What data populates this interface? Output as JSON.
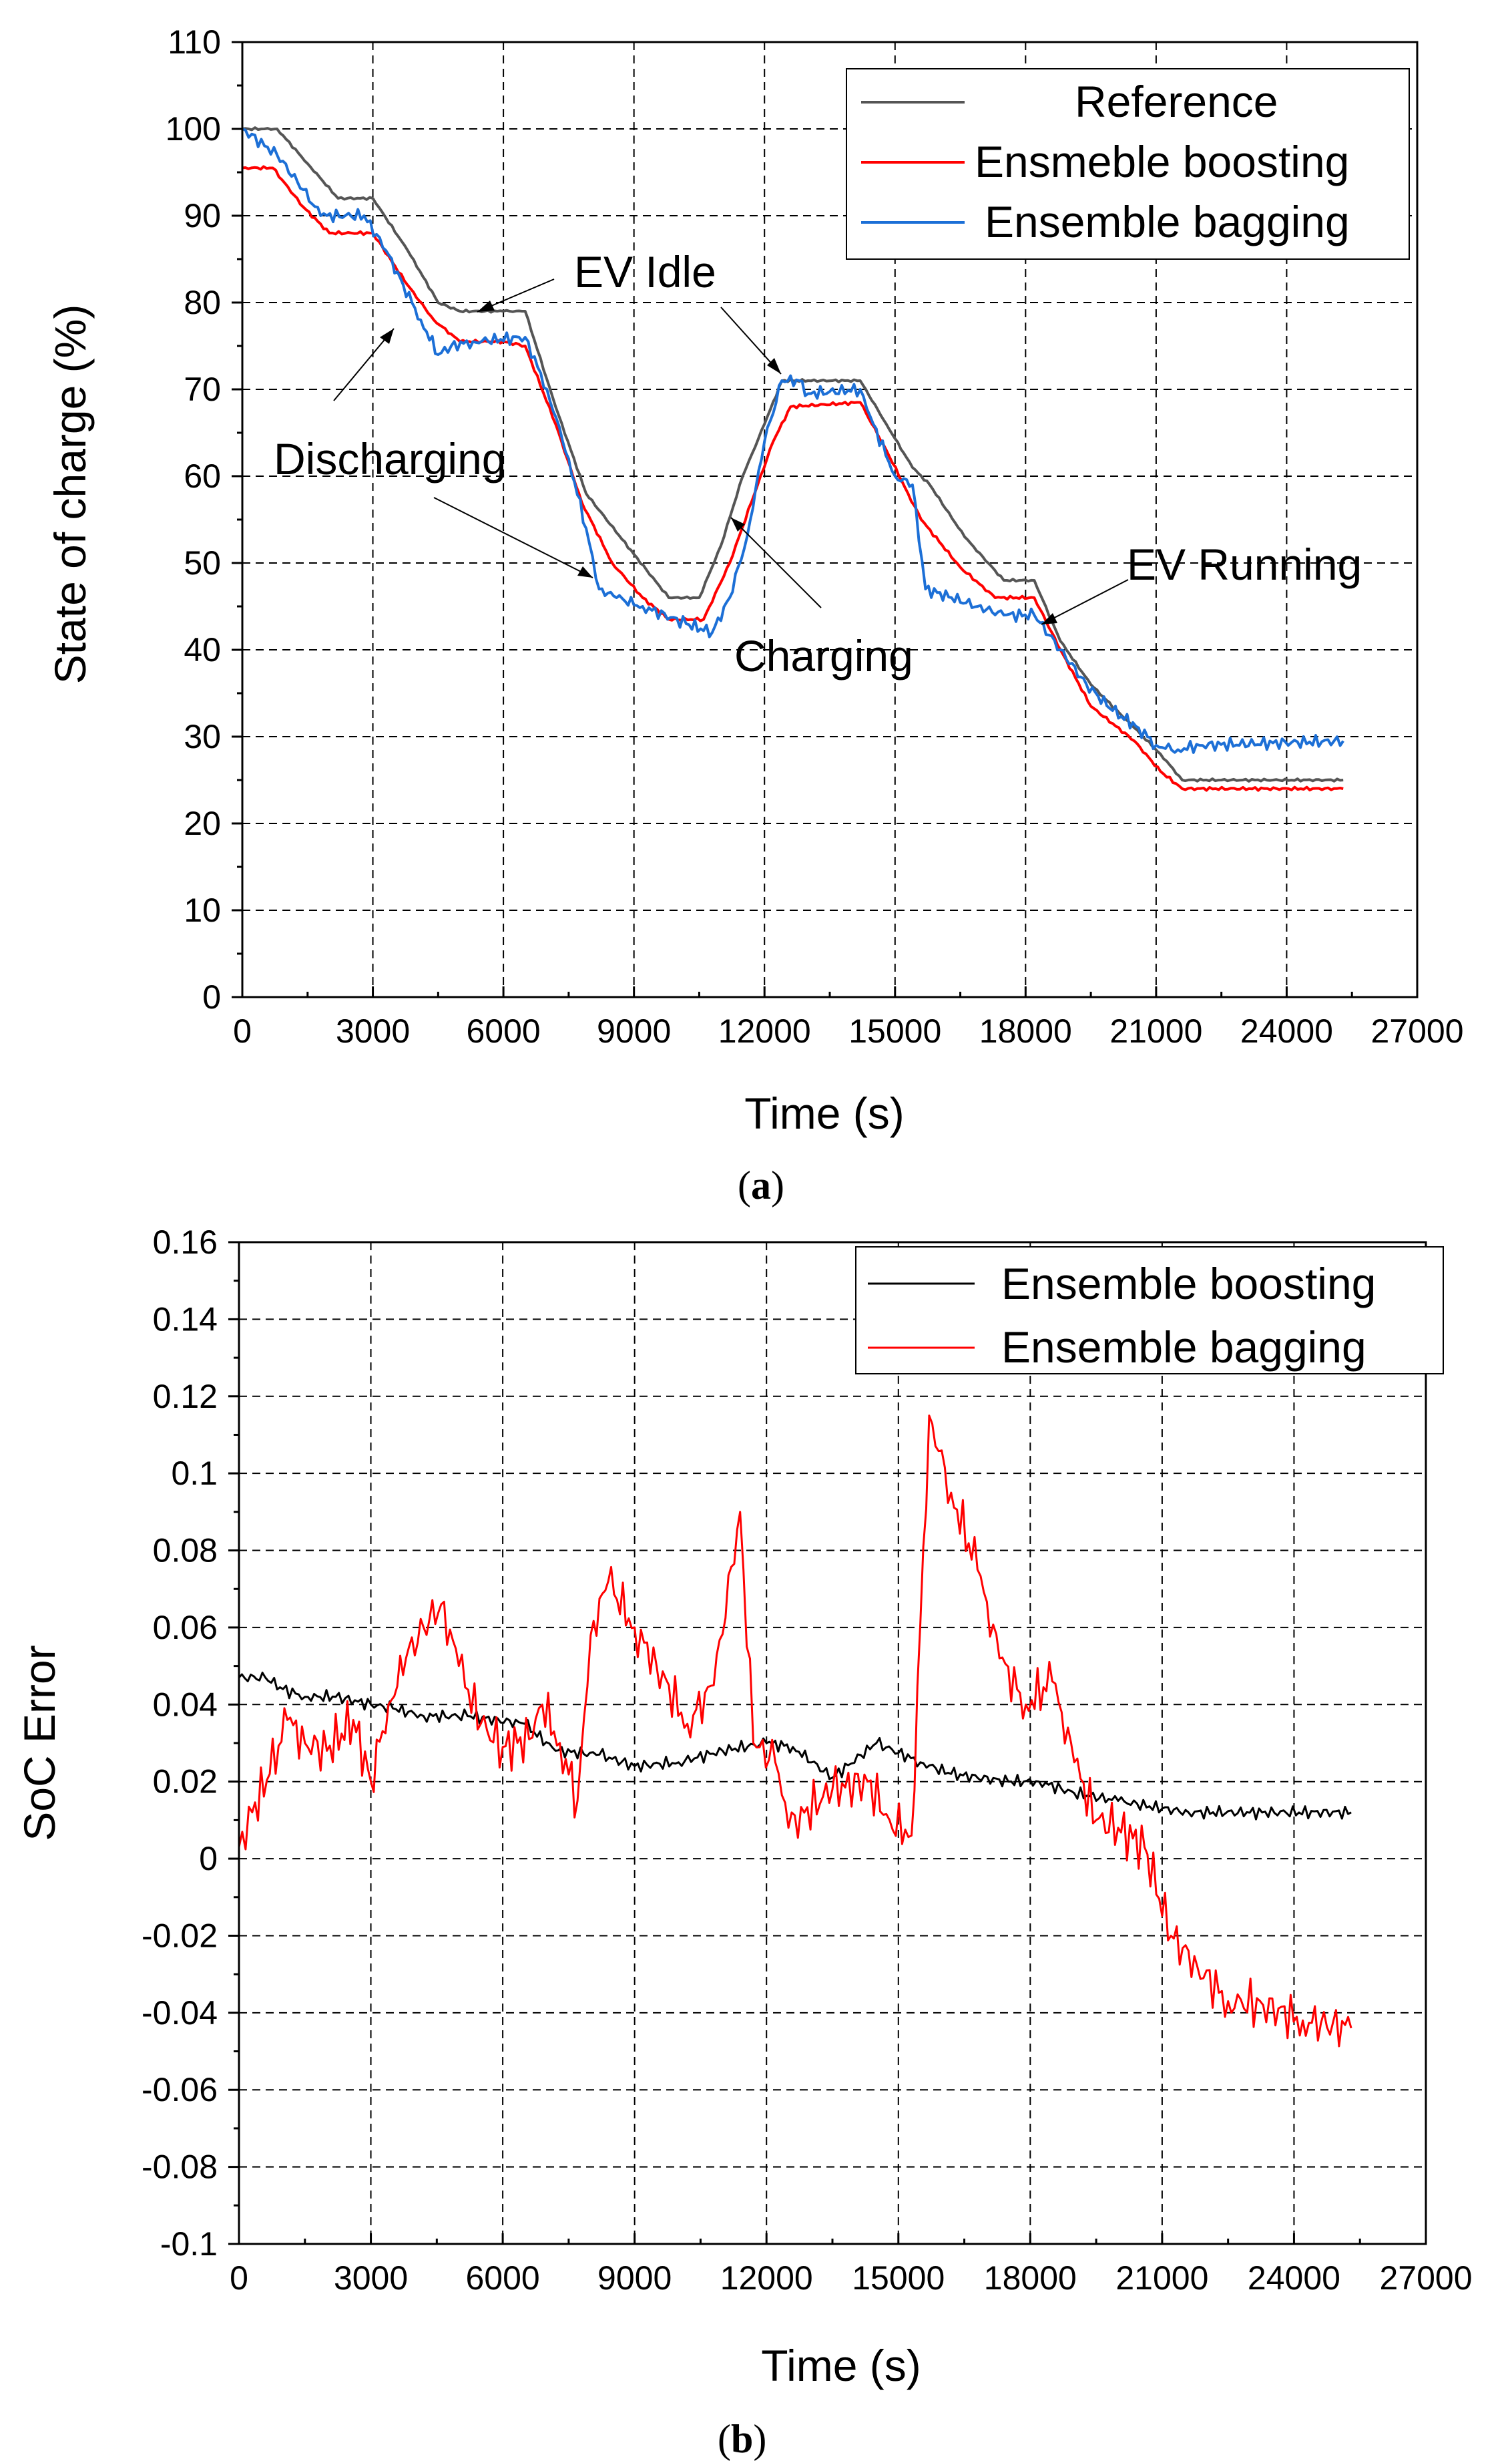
{
  "chart_data": [
    {
      "type": "line",
      "panel_label": "a",
      "xlabel": "Time (s)",
      "ylabel": "State of charge (%)",
      "xlim": [
        0,
        27000
      ],
      "ylim": [
        0,
        110
      ],
      "xticks": [
        0,
        3000,
        6000,
        9000,
        12000,
        15000,
        18000,
        21000,
        24000,
        27000
      ],
      "yticks": [
        0,
        10,
        20,
        30,
        40,
        50,
        60,
        70,
        80,
        90,
        100,
        110
      ],
      "grid": true,
      "legend_position": "top-right",
      "series": [
        {
          "name": "Reference",
          "color": "#555555",
          "points": [
            [
              0,
              100
            ],
            [
              800,
              100
            ],
            [
              1500,
              96
            ],
            [
              2200,
              92
            ],
            [
              3000,
              92
            ],
            [
              3800,
              86
            ],
            [
              4500,
              80
            ],
            [
              5000,
              79
            ],
            [
              6000,
              79
            ],
            [
              6500,
              79
            ],
            [
              7200,
              68
            ],
            [
              7900,
              58
            ],
            [
              9000,
              51
            ],
            [
              9800,
              46
            ],
            [
              10500,
              46
            ],
            [
              11000,
              52
            ],
            [
              11500,
              60
            ],
            [
              12000,
              66
            ],
            [
              12400,
              71
            ],
            [
              13000,
              71
            ],
            [
              14200,
              71
            ],
            [
              14800,
              66
            ],
            [
              15400,
              61
            ],
            [
              15800,
              59
            ],
            [
              16600,
              53
            ],
            [
              17500,
              48
            ],
            [
              18200,
              48
            ],
            [
              18800,
              41
            ],
            [
              19500,
              36
            ],
            [
              20500,
              31
            ],
            [
              21100,
              28
            ],
            [
              21600,
              25
            ],
            [
              22500,
              25
            ],
            [
              25300,
              25
            ]
          ]
        },
        {
          "name": "Ensmeble boosting",
          "color": "#ff0000",
          "points": [
            [
              0,
              95.5
            ],
            [
              700,
              95.5
            ],
            [
              1400,
              91
            ],
            [
              2000,
              88
            ],
            [
              3000,
              88
            ],
            [
              3800,
              82
            ],
            [
              4400,
              78
            ],
            [
              5000,
              75.5
            ],
            [
              6000,
              75.5
            ],
            [
              6500,
              75
            ],
            [
              7200,
              66
            ],
            [
              7800,
              57
            ],
            [
              8500,
              50
            ],
            [
              9200,
              46
            ],
            [
              9800,
              43.5
            ],
            [
              10600,
              43.5
            ],
            [
              11200,
              50
            ],
            [
              11700,
              57
            ],
            [
              12200,
              64
            ],
            [
              12600,
              68
            ],
            [
              14200,
              68.5
            ],
            [
              14800,
              63
            ],
            [
              15300,
              58
            ],
            [
              15600,
              55
            ],
            [
              16500,
              49.5
            ],
            [
              17300,
              46
            ],
            [
              18200,
              46
            ],
            [
              18800,
              40
            ],
            [
              19500,
              33.5
            ],
            [
              20500,
              29.5
            ],
            [
              21100,
              26
            ],
            [
              21600,
              24
            ],
            [
              25300,
              24
            ]
          ]
        },
        {
          "name": "Ensemble bagging",
          "color": "#1c6fd6",
          "points": [
            [
              0,
              100
            ],
            [
              800,
              97
            ],
            [
              1400,
              93
            ],
            [
              1800,
              90
            ],
            [
              2800,
              90
            ],
            [
              3300,
              86
            ],
            [
              3700,
              82
            ],
            [
              4100,
              78
            ],
            [
              4500,
              74
            ],
            [
              4800,
              75
            ],
            [
              5300,
              75.5
            ],
            [
              6500,
              76
            ],
            [
              7000,
              70
            ],
            [
              7500,
              62
            ],
            [
              7900,
              54
            ],
            [
              8200,
              47
            ],
            [
              8600,
              46
            ],
            [
              9200,
              45
            ],
            [
              10200,
              43
            ],
            [
              10800,
              42
            ],
            [
              11200,
              46
            ],
            [
              11600,
              53
            ],
            [
              12000,
              64
            ],
            [
              12400,
              71
            ],
            [
              12800,
              71
            ],
            [
              13000,
              69.5
            ],
            [
              14200,
              70
            ],
            [
              14500,
              66
            ],
            [
              15000,
              60
            ],
            [
              15400,
              59
            ],
            [
              15700,
              47
            ],
            [
              16300,
              46
            ],
            [
              16900,
              45
            ],
            [
              17500,
              44
            ],
            [
              18200,
              44
            ],
            [
              18800,
              40
            ],
            [
              19400,
              36
            ],
            [
              20000,
              33
            ],
            [
              20600,
              31
            ],
            [
              21000,
              29
            ],
            [
              21500,
              28.5
            ],
            [
              22000,
              29
            ],
            [
              25300,
              29.5
            ]
          ]
        }
      ],
      "annotations": [
        {
          "text": "EV Idle"
        },
        {
          "text": "Discharging"
        },
        {
          "text": "Charging"
        },
        {
          "text": "EV Running"
        }
      ]
    },
    {
      "type": "line",
      "panel_label": "b",
      "xlabel": "Time (s)",
      "ylabel": "SoC Error",
      "xlim": [
        0,
        27000
      ],
      "ylim": [
        -0.1,
        0.16
      ],
      "xticks": [
        0,
        3000,
        6000,
        9000,
        12000,
        15000,
        18000,
        21000,
        24000,
        27000
      ],
      "yticks": [
        -0.1,
        -0.08,
        -0.06,
        -0.04,
        -0.02,
        0,
        0.02,
        0.04,
        0.06,
        0.08,
        0.1,
        0.12,
        0.14,
        0.16
      ],
      "ytick_labels": [
        "-0.1",
        "-0.08",
        "-0.06",
        "-0.04",
        "-0.02",
        "0",
        "0.02",
        "0.04",
        "0.06",
        "0.08",
        "0.1",
        "0.12",
        "0.14",
        "0.16"
      ],
      "grid": true,
      "legend_position": "top-right",
      "series": [
        {
          "name": "Ensemble boosting",
          "color": "#000000",
          "points": [
            [
              0,
              0.047
            ],
            [
              600,
              0.047
            ],
            [
              1000,
              0.044
            ],
            [
              1500,
              0.042
            ],
            [
              2200,
              0.042
            ],
            [
              3000,
              0.04
            ],
            [
              3500,
              0.039
            ],
            [
              4200,
              0.037
            ],
            [
              5200,
              0.037
            ],
            [
              6500,
              0.035
            ],
            [
              7200,
              0.028
            ],
            [
              8200,
              0.027
            ],
            [
              9000,
              0.024
            ],
            [
              10000,
              0.025
            ],
            [
              11000,
              0.028
            ],
            [
              12000,
              0.03
            ],
            [
              12600,
              0.029
            ],
            [
              13500,
              0.021
            ],
            [
              14500,
              0.03
            ],
            [
              15500,
              0.025
            ],
            [
              16200,
              0.022
            ],
            [
              17500,
              0.02
            ],
            [
              18200,
              0.02
            ],
            [
              19000,
              0.017
            ],
            [
              20000,
              0.015
            ],
            [
              21000,
              0.013
            ],
            [
              21600,
              0.012
            ],
            [
              25300,
              0.012
            ]
          ]
        },
        {
          "name": "Ensemble bagging",
          "color": "#ff0000",
          "points": [
            [
              0,
              0.003
            ],
            [
              300,
              0.012
            ],
            [
              700,
              0.022
            ],
            [
              1100,
              0.036
            ],
            [
              1500,
              0.03
            ],
            [
              2000,
              0.028
            ],
            [
              2600,
              0.036
            ],
            [
              3000,
              0.02
            ],
            [
              3400,
              0.04
            ],
            [
              3800,
              0.052
            ],
            [
              4200,
              0.06
            ],
            [
              4600,
              0.066
            ],
            [
              5000,
              0.05
            ],
            [
              5500,
              0.035
            ],
            [
              6000,
              0.029
            ],
            [
              6600,
              0.031
            ],
            [
              6900,
              0.04
            ],
            [
              7300,
              0.03
            ],
            [
              7700,
              0.015
            ],
            [
              8000,
              0.058
            ],
            [
              8400,
              0.072
            ],
            [
              9000,
              0.06
            ],
            [
              9500,
              0.05
            ],
            [
              10200,
              0.035
            ],
            [
              10800,
              0.045
            ],
            [
              11400,
              0.09
            ],
            [
              11700,
              0.03
            ],
            [
              12200,
              0.025
            ],
            [
              12500,
              0.008
            ],
            [
              13500,
              0.018
            ],
            [
              14300,
              0.02
            ],
            [
              14800,
              0.01
            ],
            [
              15300,
              0.006
            ],
            [
              15700,
              0.115
            ],
            [
              16200,
              0.095
            ],
            [
              16800,
              0.075
            ],
            [
              17300,
              0.052
            ],
            [
              17900,
              0.04
            ],
            [
              18500,
              0.046
            ],
            [
              19000,
              0.025
            ],
            [
              19500,
              0.01
            ],
            [
              20000,
              0.008
            ],
            [
              20600,
              0.003
            ],
            [
              21200,
              -0.02
            ],
            [
              21800,
              -0.028
            ],
            [
              22500,
              -0.037
            ],
            [
              23300,
              -0.038
            ],
            [
              24200,
              -0.042
            ],
            [
              25300,
              -0.044
            ]
          ]
        }
      ]
    }
  ]
}
